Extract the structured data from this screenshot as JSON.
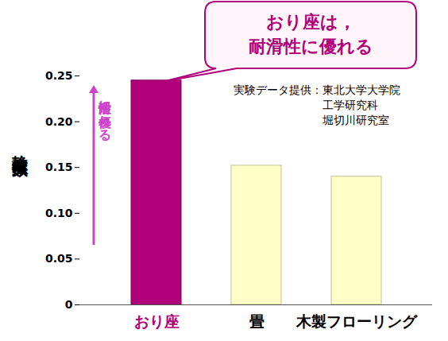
{
  "chart_data": {
    "type": "bar",
    "y_label": "静摩擦係数",
    "categories": [
      "おり座",
      "畳",
      "木製フローリング"
    ],
    "values": [
      0.245,
      0.152,
      0.14
    ],
    "colors": [
      "#b0007a",
      "#ffffc8",
      "#ffffc8"
    ],
    "ylim": [
      0,
      0.25
    ],
    "yticks": [
      0,
      0.05,
      {
        "value": 0.1,
        "label": "0.10"
      },
      0.15,
      {
        "value": 0.2,
        "label": "0.20"
      },
      0.25
    ],
    "grid": false,
    "callout": [
      "おり座は，",
      "耐滑性に優れる"
    ],
    "arrow_label": "耐滑性に優れる",
    "credit": [
      "実験データ提供：東北大学大学院",
      "工学研究科",
      "堀切川研究室"
    ]
  }
}
